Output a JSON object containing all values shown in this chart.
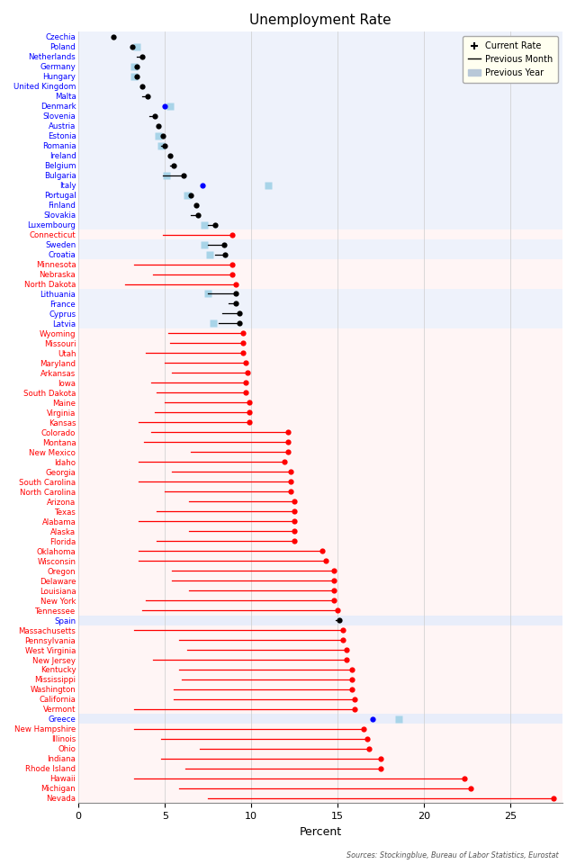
{
  "title": "Unemployment Rate",
  "xlabel": "Percent",
  "source": "Sources: Stockingblue, Bureau of Labor Statistics, Eurostat",
  "entries": [
    {
      "name": "Czechia",
      "color": "blue",
      "current": 2.0,
      "prev_month": 2.0,
      "prev_year": null,
      "is_eu": true,
      "dot_black": false
    },
    {
      "name": "Poland",
      "color": "blue",
      "current": 3.1,
      "prev_month": 3.1,
      "prev_year": 3.4,
      "is_eu": true,
      "dot_black": true
    },
    {
      "name": "Netherlands",
      "color": "blue",
      "current": 3.7,
      "prev_month": 3.4,
      "prev_year": null,
      "is_eu": true,
      "dot_black": false
    },
    {
      "name": "Germany",
      "color": "blue",
      "current": 3.4,
      "prev_month": 3.4,
      "prev_year": 3.2,
      "is_eu": true,
      "dot_black": true
    },
    {
      "name": "Hungary",
      "color": "blue",
      "current": 3.4,
      "prev_month": 3.4,
      "prev_year": 3.2,
      "is_eu": true,
      "dot_black": false
    },
    {
      "name": "United Kingdom",
      "color": "blue",
      "current": 3.7,
      "prev_month": 3.7,
      "prev_year": null,
      "is_eu": true,
      "dot_black": true
    },
    {
      "name": "Malta",
      "color": "blue",
      "current": 4.0,
      "prev_month": 3.7,
      "prev_year": null,
      "is_eu": true,
      "dot_black": false
    },
    {
      "name": "Denmark",
      "color": "blue",
      "current": 5.0,
      "prev_month": 5.0,
      "prev_year": 5.3,
      "is_eu": true,
      "dot_black": false,
      "dot_blue": true
    },
    {
      "name": "Slovenia",
      "color": "blue",
      "current": 4.4,
      "prev_month": 4.1,
      "prev_year": null,
      "is_eu": true,
      "dot_black": false
    },
    {
      "name": "Austria",
      "color": "blue",
      "current": 4.6,
      "prev_month": 4.6,
      "prev_year": null,
      "is_eu": true,
      "dot_black": true
    },
    {
      "name": "Estonia",
      "color": "blue",
      "current": 4.9,
      "prev_month": 4.9,
      "prev_year": 4.6,
      "is_eu": true,
      "dot_black": false
    },
    {
      "name": "Romania",
      "color": "blue",
      "current": 5.0,
      "prev_month": 4.8,
      "prev_year": 4.8,
      "is_eu": true,
      "dot_black": false
    },
    {
      "name": "Ireland",
      "color": "blue",
      "current": 5.3,
      "prev_month": 5.3,
      "prev_year": null,
      "is_eu": true,
      "dot_black": false
    },
    {
      "name": "Belgium",
      "color": "blue",
      "current": 5.5,
      "prev_month": 5.3,
      "prev_year": null,
      "is_eu": true,
      "dot_black": false
    },
    {
      "name": "Bulgaria",
      "color": "blue",
      "current": 6.1,
      "prev_month": 4.9,
      "prev_year": 5.1,
      "is_eu": true,
      "dot_black": false
    },
    {
      "name": "Italy",
      "color": "blue",
      "current": 7.2,
      "prev_month": 7.2,
      "prev_year": 11.0,
      "is_eu": true,
      "dot_black": false,
      "dot_blue": true
    },
    {
      "name": "Portugal",
      "color": "blue",
      "current": 6.5,
      "prev_month": 6.5,
      "prev_year": 6.3,
      "is_eu": true,
      "dot_black": false
    },
    {
      "name": "Finland",
      "color": "blue",
      "current": 6.8,
      "prev_month": 6.8,
      "prev_year": null,
      "is_eu": true,
      "dot_black": true
    },
    {
      "name": "Slovakia",
      "color": "blue",
      "current": 6.9,
      "prev_month": 6.5,
      "prev_year": null,
      "is_eu": true,
      "dot_black": false
    },
    {
      "name": "Luxembourg",
      "color": "blue",
      "current": 7.9,
      "prev_month": 7.5,
      "prev_year": 7.3,
      "is_eu": true,
      "dot_black": false
    },
    {
      "name": "Connecticut",
      "color": "red",
      "current": 8.9,
      "prev_month": 4.9,
      "prev_year": null,
      "is_eu": false,
      "dot_black": false
    },
    {
      "name": "Sweden",
      "color": "blue",
      "current": 8.4,
      "prev_month": 7.5,
      "prev_year": 7.3,
      "is_eu": true,
      "dot_black": false
    },
    {
      "name": "Croatia",
      "color": "blue",
      "current": 8.5,
      "prev_month": 7.9,
      "prev_year": 7.6,
      "is_eu": true,
      "dot_black": false
    },
    {
      "name": "Minnesota",
      "color": "red",
      "current": 8.9,
      "prev_month": 3.2,
      "prev_year": null,
      "is_eu": false,
      "dot_black": false
    },
    {
      "name": "Nebraska",
      "color": "red",
      "current": 8.9,
      "prev_month": 4.3,
      "prev_year": null,
      "is_eu": false,
      "dot_black": false
    },
    {
      "name": "North Dakota",
      "color": "red",
      "current": 9.1,
      "prev_month": 2.7,
      "prev_year": null,
      "is_eu": false,
      "dot_black": false
    },
    {
      "name": "Lithuania",
      "color": "blue",
      "current": 9.1,
      "prev_month": 7.5,
      "prev_year": 7.5,
      "is_eu": true,
      "dot_black": false
    },
    {
      "name": "France",
      "color": "blue",
      "current": 9.1,
      "prev_month": 8.7,
      "prev_year": null,
      "is_eu": true,
      "dot_black": false
    },
    {
      "name": "Cyprus",
      "color": "blue",
      "current": 9.3,
      "prev_month": 8.3,
      "prev_year": null,
      "is_eu": true,
      "dot_black": false
    },
    {
      "name": "Latvia",
      "color": "blue",
      "current": 9.3,
      "prev_month": 8.1,
      "prev_year": 7.8,
      "is_eu": true,
      "dot_black": false
    },
    {
      "name": "Wyoming",
      "color": "red",
      "current": 9.5,
      "prev_month": 5.2,
      "prev_year": null,
      "is_eu": false,
      "dot_black": false
    },
    {
      "name": "Missouri",
      "color": "red",
      "current": 9.5,
      "prev_month": 5.3,
      "prev_year": null,
      "is_eu": false,
      "dot_black": false
    },
    {
      "name": "Utah",
      "color": "red",
      "current": 9.5,
      "prev_month": 3.9,
      "prev_year": null,
      "is_eu": false,
      "dot_black": false
    },
    {
      "name": "Maryland",
      "color": "red",
      "current": 9.7,
      "prev_month": 5.0,
      "prev_year": null,
      "is_eu": false,
      "dot_black": false
    },
    {
      "name": "Arkansas",
      "color": "red",
      "current": 9.8,
      "prev_month": 5.4,
      "prev_year": null,
      "is_eu": false,
      "dot_black": false
    },
    {
      "name": "Iowa",
      "color": "red",
      "current": 9.7,
      "prev_month": 4.2,
      "prev_year": null,
      "is_eu": false,
      "dot_black": false
    },
    {
      "name": "South Dakota",
      "color": "red",
      "current": 9.7,
      "prev_month": 4.5,
      "prev_year": null,
      "is_eu": false,
      "dot_black": false
    },
    {
      "name": "Maine",
      "color": "red",
      "current": 9.9,
      "prev_month": 5.0,
      "prev_year": null,
      "is_eu": false,
      "dot_black": false
    },
    {
      "name": "Virginia",
      "color": "red",
      "current": 9.9,
      "prev_month": 4.4,
      "prev_year": null,
      "is_eu": false,
      "dot_black": false
    },
    {
      "name": "Kansas",
      "color": "red",
      "current": 9.9,
      "prev_month": 3.5,
      "prev_year": null,
      "is_eu": false,
      "dot_black": false
    },
    {
      "name": "Colorado",
      "color": "red",
      "current": 12.1,
      "prev_month": 4.2,
      "prev_year": null,
      "is_eu": false,
      "dot_black": false
    },
    {
      "name": "Montana",
      "color": "red",
      "current": 12.1,
      "prev_month": 3.8,
      "prev_year": null,
      "is_eu": false,
      "dot_black": false
    },
    {
      "name": "New Mexico",
      "color": "red",
      "current": 12.1,
      "prev_month": 6.5,
      "prev_year": null,
      "is_eu": false,
      "dot_black": false
    },
    {
      "name": "Idaho",
      "color": "red",
      "current": 11.9,
      "prev_month": 3.5,
      "prev_year": null,
      "is_eu": false,
      "dot_black": false
    },
    {
      "name": "Georgia",
      "color": "red",
      "current": 12.3,
      "prev_month": 5.4,
      "prev_year": null,
      "is_eu": false,
      "dot_black": false
    },
    {
      "name": "South Carolina",
      "color": "red",
      "current": 12.3,
      "prev_month": 3.5,
      "prev_year": null,
      "is_eu": false,
      "dot_black": false
    },
    {
      "name": "North Carolina",
      "color": "red",
      "current": 12.3,
      "prev_month": 5.0,
      "prev_year": null,
      "is_eu": false,
      "dot_black": false
    },
    {
      "name": "Arizona",
      "color": "red",
      "current": 12.5,
      "prev_month": 6.4,
      "prev_year": null,
      "is_eu": false,
      "dot_black": false
    },
    {
      "name": "Texas",
      "color": "red",
      "current": 12.5,
      "prev_month": 4.5,
      "prev_year": null,
      "is_eu": false,
      "dot_black": false
    },
    {
      "name": "Alabama",
      "color": "red",
      "current": 12.5,
      "prev_month": 3.5,
      "prev_year": null,
      "is_eu": false,
      "dot_black": false
    },
    {
      "name": "Alaska",
      "color": "red",
      "current": 12.5,
      "prev_month": 6.4,
      "prev_year": null,
      "is_eu": false,
      "dot_black": false
    },
    {
      "name": "Florida",
      "color": "red",
      "current": 12.5,
      "prev_month": 4.5,
      "prev_year": null,
      "is_eu": false,
      "dot_black": false
    },
    {
      "name": "Oklahoma",
      "color": "red",
      "current": 14.1,
      "prev_month": 3.5,
      "prev_year": null,
      "is_eu": false,
      "dot_black": false
    },
    {
      "name": "Wisconsin",
      "color": "red",
      "current": 14.3,
      "prev_month": 3.5,
      "prev_year": null,
      "is_eu": false,
      "dot_black": false
    },
    {
      "name": "Oregon",
      "color": "red",
      "current": 14.8,
      "prev_month": 5.4,
      "prev_year": null,
      "is_eu": false,
      "dot_black": false
    },
    {
      "name": "Delaware",
      "color": "red",
      "current": 14.8,
      "prev_month": 5.4,
      "prev_year": null,
      "is_eu": false,
      "dot_black": false
    },
    {
      "name": "Louisiana",
      "color": "red",
      "current": 14.8,
      "prev_month": 6.4,
      "prev_year": null,
      "is_eu": false,
      "dot_black": false
    },
    {
      "name": "New York",
      "color": "red",
      "current": 14.8,
      "prev_month": 3.9,
      "prev_year": null,
      "is_eu": false,
      "dot_black": false
    },
    {
      "name": "Tennessee",
      "color": "red",
      "current": 15.0,
      "prev_month": 3.7,
      "prev_year": null,
      "is_eu": false,
      "dot_black": false
    },
    {
      "name": "Spain",
      "color": "blue",
      "current": 15.1,
      "prev_month": 14.9,
      "prev_year": null,
      "is_eu": true,
      "dot_black": false,
      "highlight": true
    },
    {
      "name": "Massachusetts",
      "color": "red",
      "current": 15.3,
      "prev_month": 3.2,
      "prev_year": null,
      "is_eu": false,
      "dot_black": false
    },
    {
      "name": "Pennsylvania",
      "color": "red",
      "current": 15.3,
      "prev_month": 5.8,
      "prev_year": null,
      "is_eu": false,
      "dot_black": false
    },
    {
      "name": "West Virginia",
      "color": "red",
      "current": 15.5,
      "prev_month": 6.3,
      "prev_year": null,
      "is_eu": false,
      "dot_black": false
    },
    {
      "name": "New Jersey",
      "color": "red",
      "current": 15.5,
      "prev_month": 4.3,
      "prev_year": null,
      "is_eu": false,
      "dot_black": false
    },
    {
      "name": "Kentucky",
      "color": "red",
      "current": 15.8,
      "prev_month": 5.8,
      "prev_year": null,
      "is_eu": false,
      "dot_black": false
    },
    {
      "name": "Mississippi",
      "color": "red",
      "current": 15.8,
      "prev_month": 6.0,
      "prev_year": null,
      "is_eu": false,
      "dot_black": false
    },
    {
      "name": "Washington",
      "color": "red",
      "current": 15.8,
      "prev_month": 5.5,
      "prev_year": null,
      "is_eu": false,
      "dot_black": false
    },
    {
      "name": "California",
      "color": "red",
      "current": 16.0,
      "prev_month": 5.5,
      "prev_year": null,
      "is_eu": false,
      "dot_black": false
    },
    {
      "name": "Vermont",
      "color": "red",
      "current": 16.0,
      "prev_month": 3.2,
      "prev_year": null,
      "is_eu": false,
      "dot_black": false
    },
    {
      "name": "Greece",
      "color": "blue",
      "current": 17.0,
      "prev_month": 17.0,
      "prev_year": 18.5,
      "is_eu": true,
      "dot_black": false,
      "dot_blue": true,
      "highlight": true
    },
    {
      "name": "New Hampshire",
      "color": "red",
      "current": 16.5,
      "prev_month": 3.2,
      "prev_year": null,
      "is_eu": false,
      "dot_black": false
    },
    {
      "name": "Illinois",
      "color": "red",
      "current": 16.7,
      "prev_month": 4.8,
      "prev_year": null,
      "is_eu": false,
      "dot_black": false
    },
    {
      "name": "Ohio",
      "color": "red",
      "current": 16.8,
      "prev_month": 7.0,
      "prev_year": null,
      "is_eu": false,
      "dot_black": false
    },
    {
      "name": "Indiana",
      "color": "red",
      "current": 17.5,
      "prev_month": 4.8,
      "prev_year": null,
      "is_eu": false,
      "dot_black": false
    },
    {
      "name": "Rhode Island",
      "color": "red",
      "current": 17.5,
      "prev_month": 6.2,
      "prev_year": null,
      "is_eu": false,
      "dot_black": false
    },
    {
      "name": "Hawaii",
      "color": "red",
      "current": 22.3,
      "prev_month": 3.2,
      "prev_year": null,
      "is_eu": false,
      "dot_black": false
    },
    {
      "name": "Michigan",
      "color": "red",
      "current": 22.7,
      "prev_month": 5.8,
      "prev_year": null,
      "is_eu": false,
      "dot_black": false
    },
    {
      "name": "Nevada",
      "color": "red",
      "current": 27.5,
      "prev_month": 7.5,
      "prev_year": null,
      "is_eu": false,
      "dot_black": false
    }
  ],
  "bg_color_us": "#fff5f5",
  "bg_color_eu": "#eef2fb",
  "bg_color_special": "#e8edfa",
  "xlim": [
    0,
    28
  ],
  "xticks": [
    0,
    5,
    10,
    15,
    20,
    25
  ]
}
